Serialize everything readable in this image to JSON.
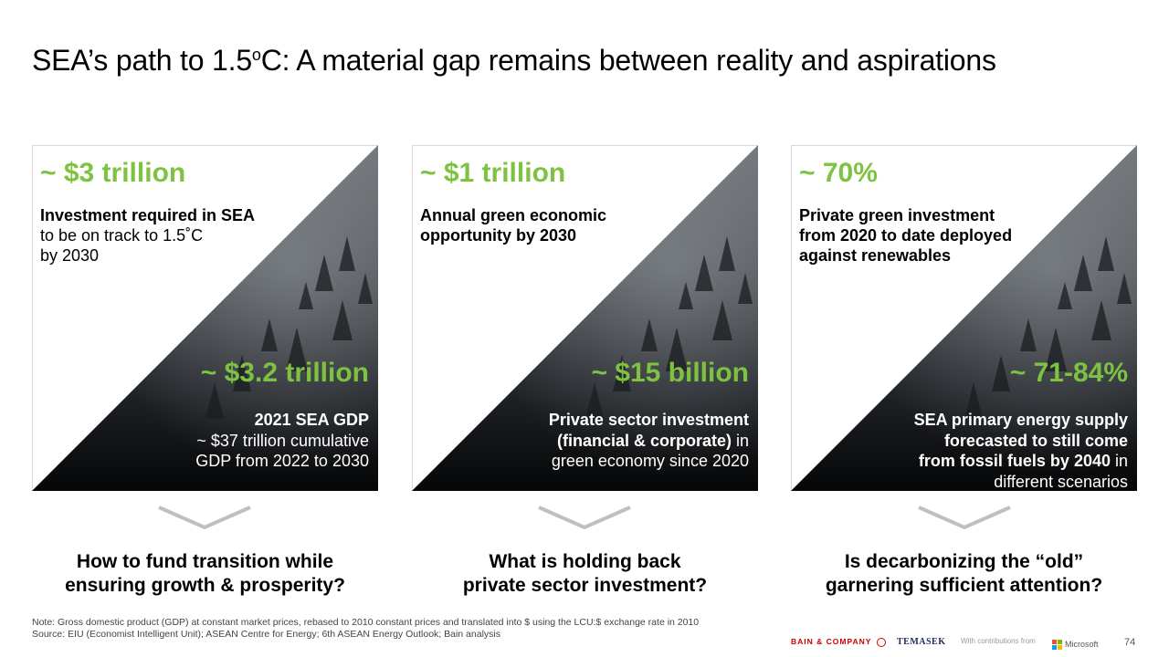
{
  "title": {
    "main": "SEA’s path to 1.5",
    "sup": "o",
    "tail": "C: A material gap remains between reality and aspirations"
  },
  "panels": [
    {
      "top_value": "~ $3 trillion",
      "top_text": {
        "bold": "Investment required in SEA",
        "line2": "to be on track to 1.5˚C",
        "line3": "by 2030"
      },
      "bottom_value": "~ $3.2 trillion",
      "bottom_text": {
        "line1_bold": "2021 SEA GDP",
        "line2": "~ $37 trillion cumulative",
        "line3": "GDP from 2022 to 2030"
      },
      "question": {
        "line1": "How to fund transition while",
        "line2": "ensuring growth & prosperity?"
      }
    },
    {
      "top_value": "~ $1 trillion",
      "top_text": {
        "bold1": "Annual green economic",
        "bold2": "opportunity by 2030"
      },
      "bottom_value": "~ $15 billion",
      "bottom_text": {
        "line1_bold": "Private sector investment",
        "line2_bold": "(financial & corporate)",
        "line2_rest": " in",
        "line3": "green economy since 2020"
      },
      "question": {
        "line1": "What is holding back",
        "line2": "private sector investment?"
      }
    },
    {
      "top_value": "~ 70%",
      "top_text": {
        "bold1": "Private green investment",
        "bold2": "from 2020 to date deployed",
        "bold3": "against renewables"
      },
      "bottom_value": "~ 71-84%",
      "bottom_text": {
        "line1_bold": "SEA primary energy supply",
        "line2_bold": "forecasted to still come",
        "line3_bold": "from fossil fuels by 2040",
        "line3_rest": " in",
        "line4": "different scenarios"
      },
      "question": {
        "line1": "Is decarbonizing the “old”",
        "line2": "garnering sufficient attention?"
      }
    }
  ],
  "note": {
    "line1": "Note: Gross domestic product (GDP) at constant market prices, rebased to 2010 constant prices and translated into $ using the LCU:$ exchange rate in 2010",
    "line2": "Source: EIU (Economist Intelligent Unit); ASEAN Centre for Energy; 6th ASEAN Energy Outlook; Bain analysis"
  },
  "footer": {
    "bain": "BAIN & COMPANY",
    "temasek": "TEMASEK",
    "contrib": "With contributions from",
    "microsoft": "Microsoft",
    "page": "74"
  },
  "colors": {
    "accent_green": "#7ec242",
    "chevron_grey": "#bfbfbf"
  }
}
